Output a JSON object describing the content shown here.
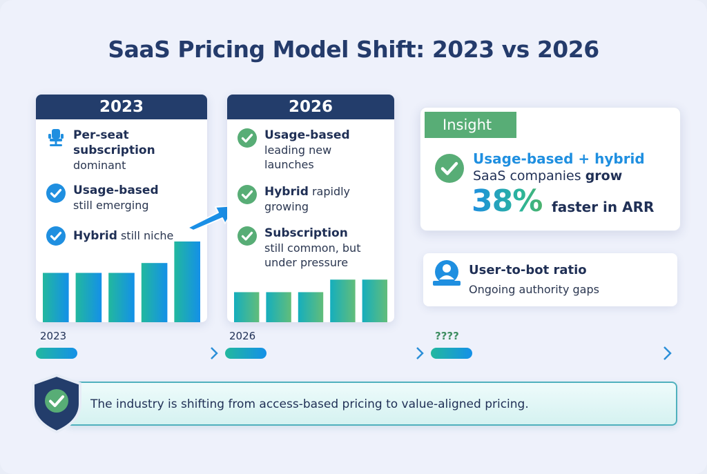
{
  "title": "SaaS Pricing Model Shift: 2023 vs 2026",
  "colors": {
    "navy": "#233d6b",
    "blue": "#1f8fe0",
    "green": "#58ad76",
    "teal": "#2bb59a"
  },
  "card_2023": {
    "year": "2023",
    "items": [
      {
        "icon": "office-chair-icon",
        "bold": "Per-seat subscription",
        "rest": "dominant"
      },
      {
        "icon": "check-circle-icon",
        "bold": "Usage-based",
        "rest": "still emerging"
      },
      {
        "icon": "check-circle-icon",
        "bold": "Hybrid",
        "rest": "still niche"
      }
    ],
    "bar_trend": [
      0.55,
      0.55,
      0.55,
      0.66,
      0.9
    ]
  },
  "card_2026": {
    "year": "2026",
    "items": [
      {
        "icon": "check-circle-icon",
        "bold": "Usage-based",
        "rest": "leading new launches"
      },
      {
        "icon": "check-circle-icon",
        "bold": "Hybrid",
        "rest": "rapidly growing"
      },
      {
        "icon": "check-circle-icon",
        "bold": "Subscription",
        "rest": "still common, but under pressure"
      }
    ],
    "bar_trend": [
      0.67,
      0.67,
      0.67,
      0.95,
      0.95
    ]
  },
  "insight": {
    "tag": "Insight",
    "line1": "Usage-based + hybrid",
    "line2_prefix": "SaaS companies ",
    "line2_bold": "grow",
    "percent": "38%",
    "line3": "faster in ARR"
  },
  "ratio_card": {
    "title": "User-to-bot ratio",
    "subtitle": "Ongoing authority gaps"
  },
  "timeline": {
    "labels": [
      "2023",
      "2026",
      "????"
    ]
  },
  "banner": {
    "text": "The industry is shifting from access-based pricing to value-aligned pricing."
  }
}
